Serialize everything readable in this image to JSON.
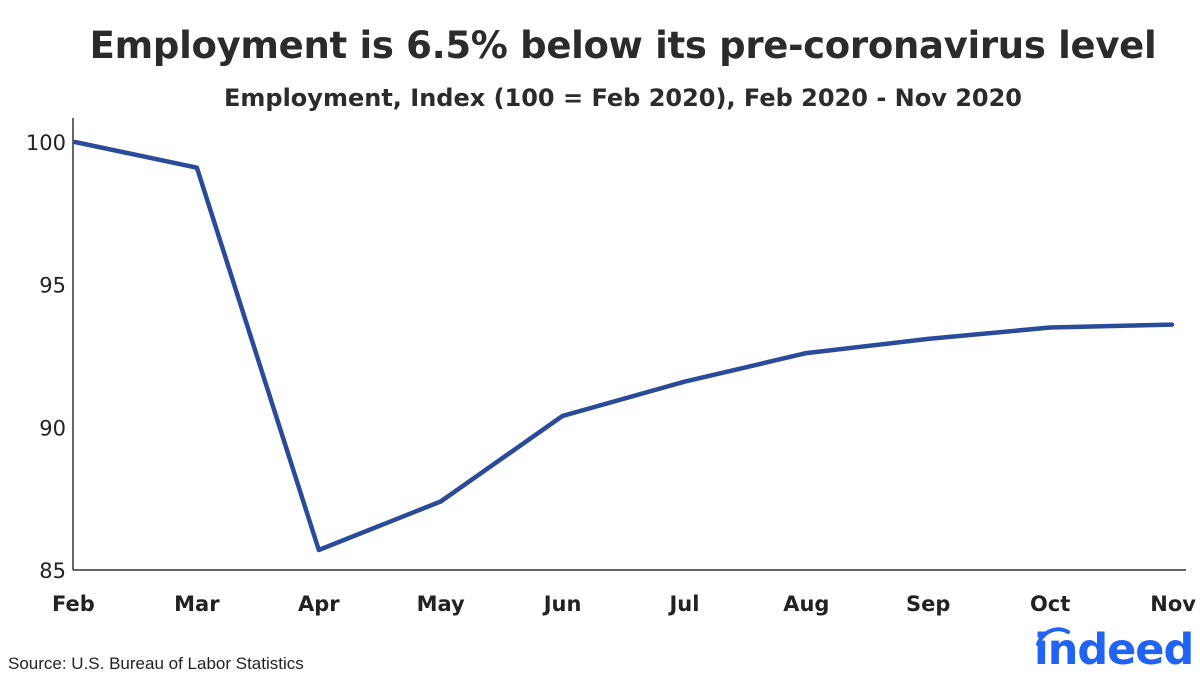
{
  "chart_data": {
    "type": "line",
    "title": "Employment is 6.5% below its pre-coronavirus level",
    "subtitle": "Employment, Index (100 = Feb 2020), Feb 2020 - Nov 2020",
    "xlabel": "",
    "ylabel": "",
    "categories": [
      "Feb",
      "Mar",
      "Apr",
      "May",
      "Jun",
      "Jul",
      "Aug",
      "Sep",
      "Oct",
      "Nov"
    ],
    "series": [
      {
        "values": [
          100.0,
          99.1,
          85.7,
          87.4,
          90.4,
          91.6,
          92.6,
          93.1,
          93.5,
          93.6
        ],
        "color": "#2a4a9a"
      }
    ],
    "ylim": [
      85,
      100
    ],
    "yticks": [
      "100",
      "95",
      "90",
      "85"
    ],
    "yticks_values": [
      100,
      95,
      90,
      85
    ],
    "grid": false,
    "legend": "none"
  },
  "source": "Source: U.S. Bureau of Labor Statistics",
  "brand": {
    "name": "indeed",
    "color": "#2164f3"
  }
}
